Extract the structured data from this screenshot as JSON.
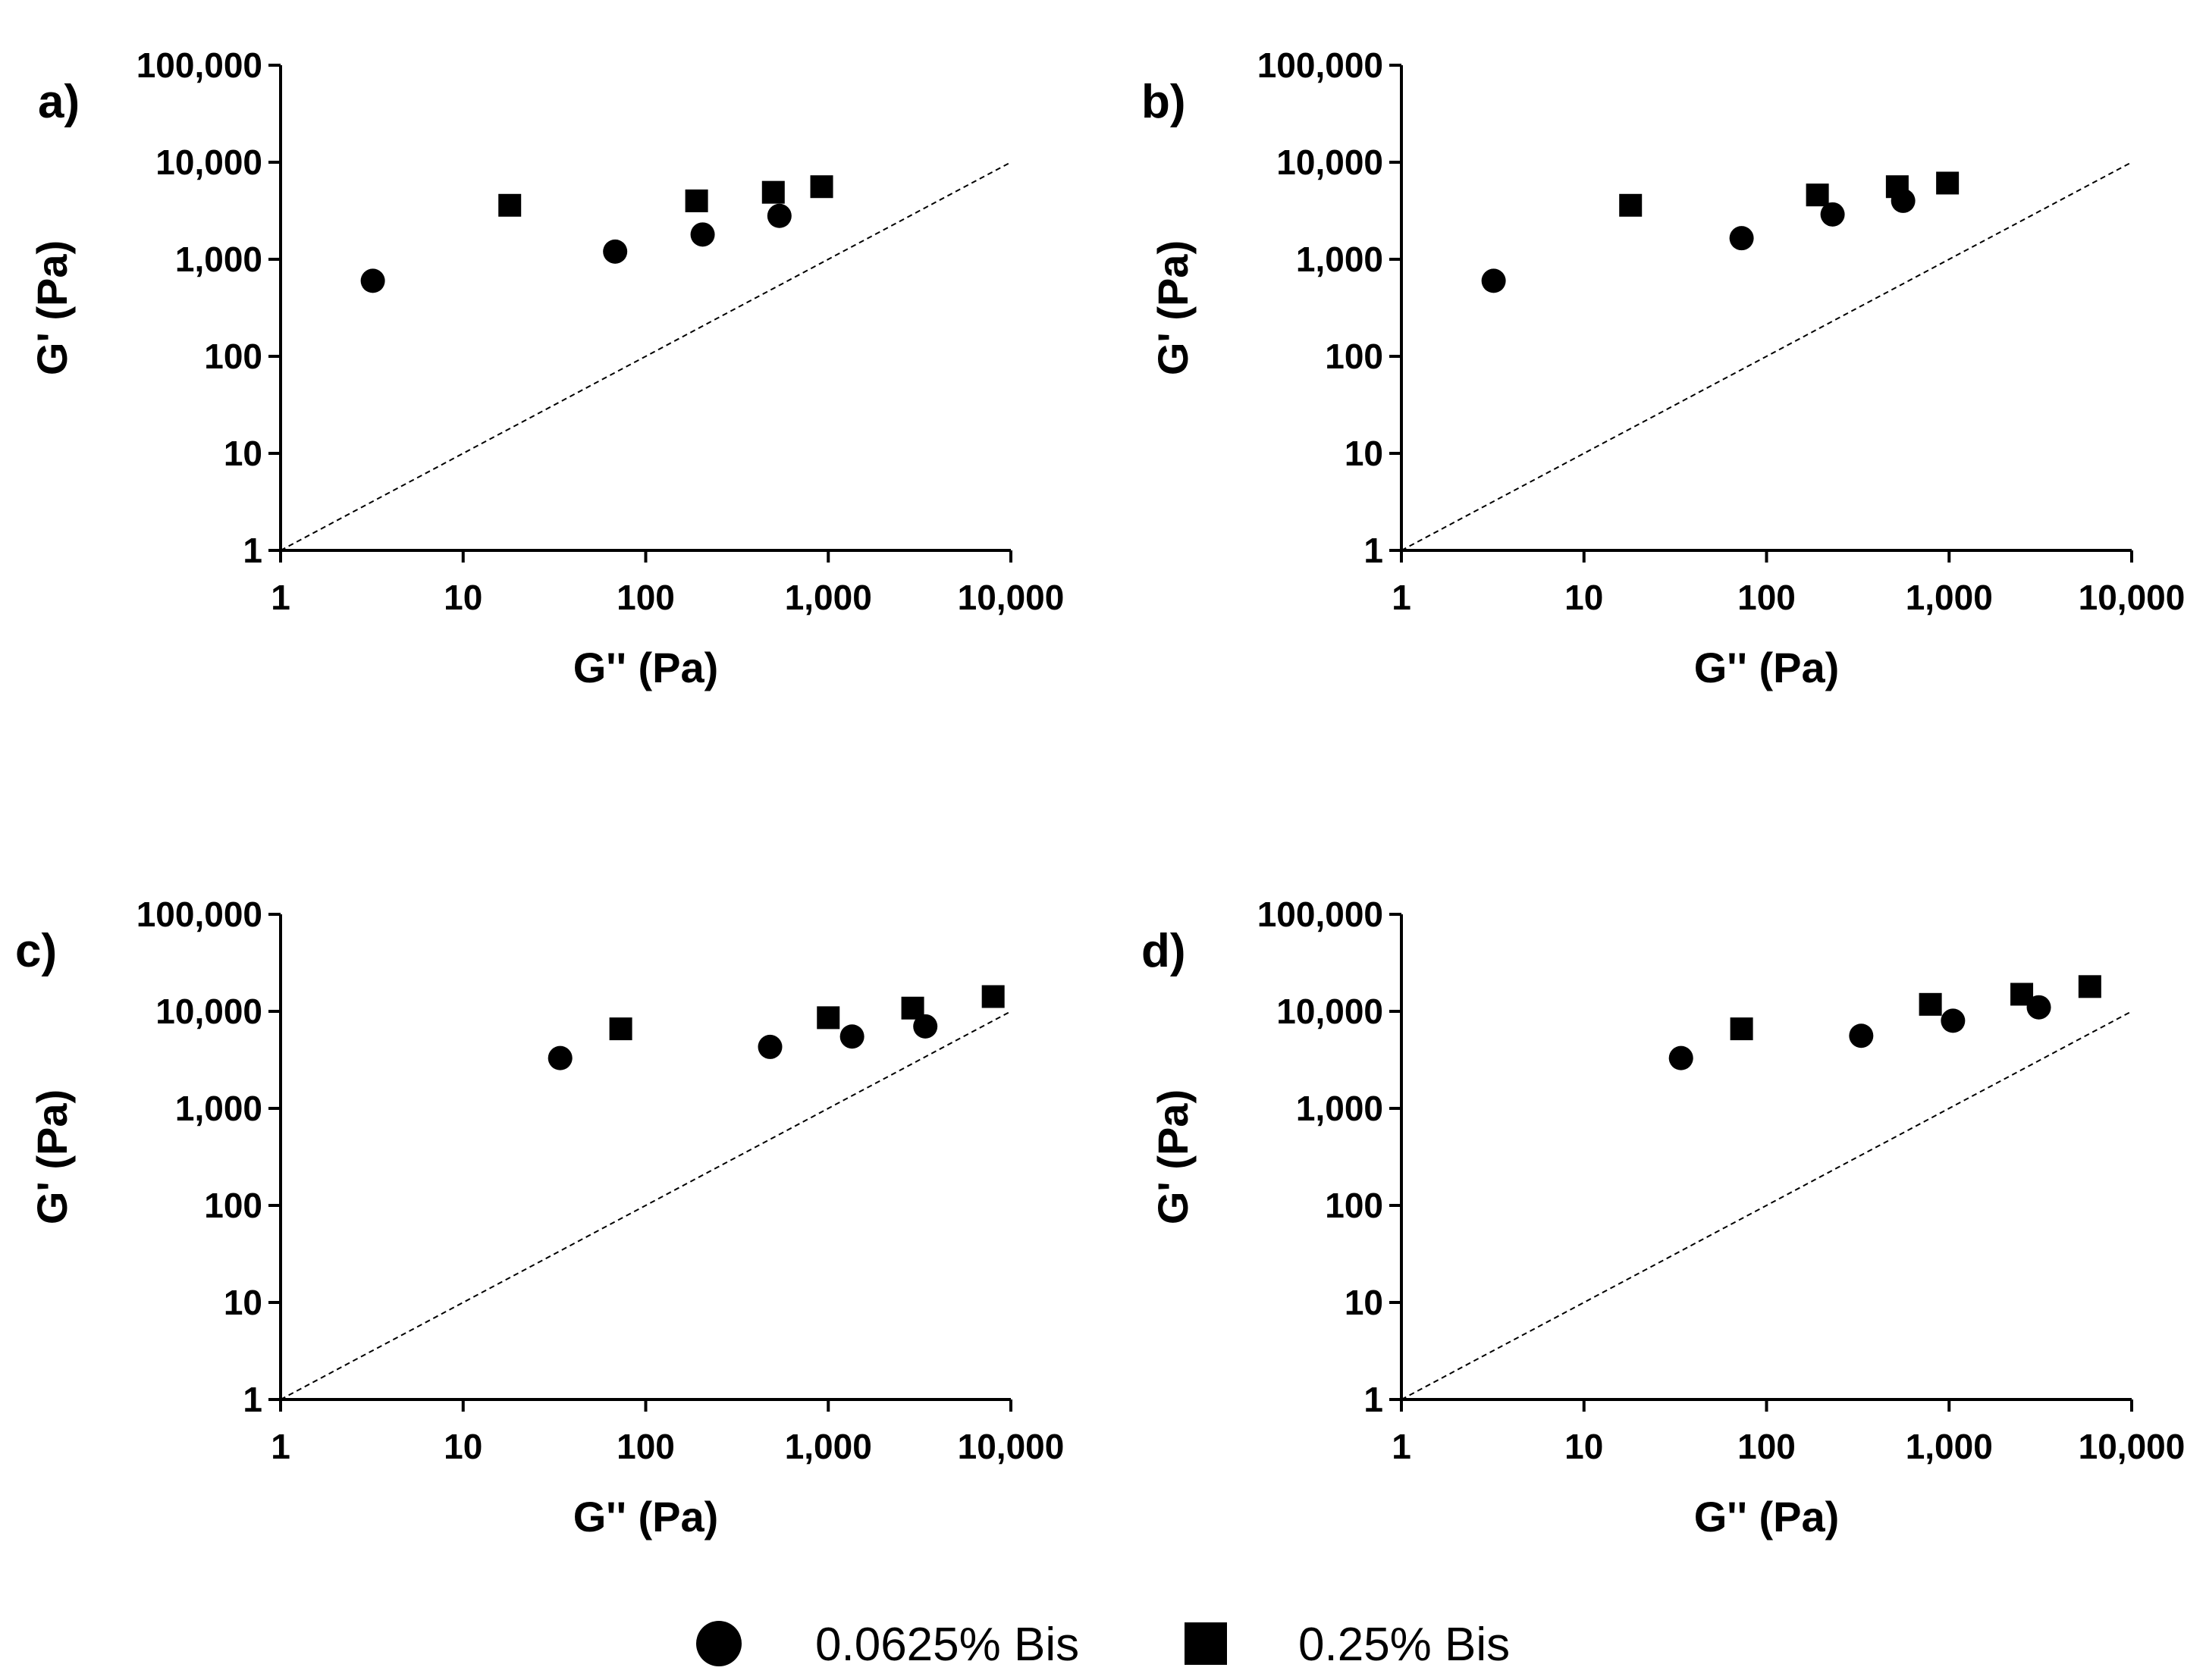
{
  "chart_data": [
    {
      "type": "scatter",
      "panel": "a)",
      "xlabel": "G'' (Pa)",
      "ylabel": "G' (Pa)",
      "xscale": "log",
      "yscale": "log",
      "xlim": [
        1,
        10000
      ],
      "ylim": [
        1,
        100000
      ],
      "xticks": [
        "1",
        "10",
        "100",
        "1,000",
        "10,000"
      ],
      "yticks": [
        "1",
        "10",
        "100",
        "1,000",
        "10,000",
        "100,000"
      ],
      "reference_line": "G' = G''",
      "series": [
        {
          "name": "0.0625% Bis",
          "marker": "circle",
          "x": [
            3.2,
            68,
            205,
            540
          ],
          "y": [
            600,
            1200,
            1800,
            2800
          ]
        },
        {
          "name": "0.25% Bis",
          "marker": "square",
          "x": [
            18,
            190,
            500,
            920
          ],
          "y": [
            3600,
            4000,
            4900,
            5600
          ]
        }
      ]
    },
    {
      "type": "scatter",
      "panel": "b)",
      "xlabel": "G'' (Pa)",
      "ylabel": "G' (Pa)",
      "xscale": "log",
      "yscale": "log",
      "xlim": [
        1,
        10000
      ],
      "ylim": [
        1,
        100000
      ],
      "xticks": [
        "1",
        "10",
        "100",
        "1,000",
        "10,000"
      ],
      "yticks": [
        "1",
        "10",
        "100",
        "1,000",
        "10,000",
        "100,000"
      ],
      "reference_line": "G' = G''",
      "series": [
        {
          "name": "0.0625% Bis",
          "marker": "circle",
          "x": [
            3.2,
            73,
            230,
            560
          ],
          "y": [
            600,
            1650,
            2900,
            4000
          ]
        },
        {
          "name": "0.25% Bis",
          "marker": "square",
          "x": [
            18,
            190,
            520,
            980
          ],
          "y": [
            3600,
            4600,
            5600,
            6100
          ]
        }
      ]
    },
    {
      "type": "scatter",
      "panel": "c)",
      "xlabel": "G'' (Pa)",
      "ylabel": "G' (Pa)",
      "xscale": "log",
      "yscale": "log",
      "xlim": [
        1,
        10000
      ],
      "ylim": [
        1,
        100000
      ],
      "xticks": [
        "1",
        "10",
        "100",
        "1,000",
        "10,000"
      ],
      "yticks": [
        "1",
        "10",
        "100",
        "1,000",
        "10,000",
        "100,000"
      ],
      "reference_line": "G' = G''",
      "series": [
        {
          "name": "0.0625% Bis",
          "marker": "circle",
          "x": [
            34,
            480,
            1350,
            3400
          ],
          "y": [
            3300,
            4300,
            5500,
            7000
          ]
        },
        {
          "name": "0.25% Bis",
          "marker": "square",
          "x": [
            73,
            1000,
            2900,
            8000
          ],
          "y": [
            6600,
            8600,
            10800,
            14200
          ]
        }
      ]
    },
    {
      "type": "scatter",
      "panel": "d)",
      "xlabel": "G'' (Pa)",
      "ylabel": "G' (Pa)",
      "xscale": "log",
      "yscale": "log",
      "xlim": [
        1,
        10000
      ],
      "ylim": [
        1,
        100000
      ],
      "xticks": [
        "1",
        "10",
        "100",
        "1,000",
        "10,000"
      ],
      "yticks": [
        "1",
        "10",
        "100",
        "1,000",
        "10,000",
        "100,000"
      ],
      "reference_line": "G' = G''",
      "series": [
        {
          "name": "0.0625% Bis",
          "marker": "circle",
          "x": [
            34,
            330,
            1050,
            3100
          ],
          "y": [
            3300,
            5600,
            8000,
            11000
          ]
        },
        {
          "name": "0.25% Bis",
          "marker": "square",
          "x": [
            73,
            790,
            2500,
            5900
          ],
          "y": [
            6600,
            11800,
            15000,
            18000
          ]
        }
      ]
    }
  ],
  "legend": {
    "position": "bottom-center",
    "items": [
      {
        "label": "0.0625% Bis",
        "marker": "circle"
      },
      {
        "label": "0.25% Bis",
        "marker": "square"
      }
    ]
  }
}
